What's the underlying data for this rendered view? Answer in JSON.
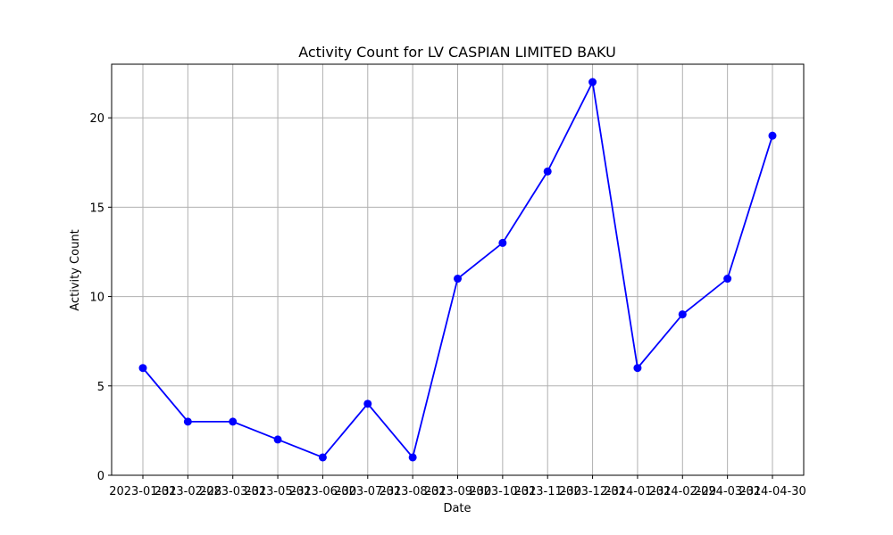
{
  "chart_data": {
    "type": "line",
    "title": "Activity Count for LV CASPIAN LIMITED BAKU",
    "xlabel": "Date",
    "ylabel": "Activity Count",
    "x": [
      "2023-01-31",
      "2023-02-28",
      "2023-03-31",
      "2023-05-31",
      "2023-06-30",
      "2023-07-31",
      "2023-08-31",
      "2023-09-30",
      "2023-10-31",
      "2023-11-30",
      "2023-12-31",
      "2024-01-31",
      "2024-02-29",
      "2024-03-31",
      "2024-04-30"
    ],
    "series": [
      {
        "values": [
          6,
          3,
          3,
          2,
          1,
          4,
          1,
          11,
          13,
          17,
          22,
          6,
          9,
          11,
          19
        ],
        "color": "#0000ff",
        "marker": "circle"
      }
    ],
    "yticks": [
      0,
      5,
      10,
      15,
      20
    ],
    "ylim": [
      0,
      23
    ],
    "grid": true,
    "colors": {
      "grid": "#b0b0b0",
      "axis": "#000000"
    }
  }
}
